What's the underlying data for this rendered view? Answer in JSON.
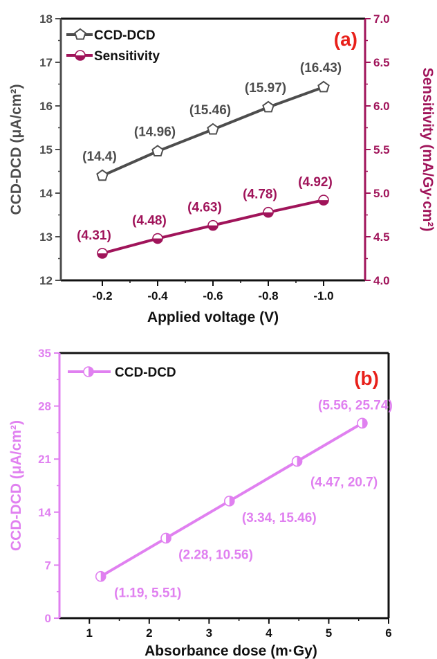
{
  "chart_data": [
    {
      "type": "line",
      "panel_label": "(a)",
      "xlabel": "Applied voltage (V)",
      "categories": [
        "-0.2",
        "-0.4",
        "-0.6",
        "-0.8",
        "-1.0"
      ],
      "x": [
        -0.2,
        -0.4,
        -0.6,
        -0.8,
        -1.0
      ],
      "xlim": [
        -0.05,
        -1.15
      ],
      "y_left": {
        "label": "CCD-DCD (μA/cm²)",
        "lim": [
          12,
          18
        ],
        "ticks": [
          "12",
          "13",
          "14",
          "15",
          "16",
          "17",
          "18"
        ],
        "color": "#4d4d4d"
      },
      "y_right": {
        "label": "Sensitivity (mA/Gy·cm²)",
        "lim": [
          4.0,
          7.0
        ],
        "ticks": [
          "4.0",
          "4.5",
          "5.0",
          "5.5",
          "6.0",
          "6.5",
          "7.0"
        ],
        "color": "#a0145a"
      },
      "series": [
        {
          "name": "CCD-DCD",
          "axis": "left",
          "marker": "pentagon",
          "color": "#4d4d4d",
          "values": [
            14.4,
            14.96,
            15.46,
            15.97,
            16.43
          ],
          "labels": [
            "(14.4)",
            "(14.96)",
            "(15.46)",
            "(15.97)",
            "(16.43)"
          ]
        },
        {
          "name": "Sensitivity",
          "axis": "right",
          "marker": "half-circle",
          "color": "#a0145a",
          "values": [
            4.31,
            4.48,
            4.63,
            4.78,
            4.92
          ],
          "labels": [
            "(4.31)",
            "(4.48)",
            "(4.63)",
            "(4.78)",
            "(4.92)"
          ]
        }
      ],
      "legend": "top-left",
      "grid": false
    },
    {
      "type": "line",
      "panel_label": "(b)",
      "xlabel": "Absorbance dose (m·Gy)",
      "ylabel": "CCD-DCD (μA/cm²)",
      "xlim": [
        0.5,
        6
      ],
      "xticks": [
        "1",
        "2",
        "3",
        "4",
        "5",
        "6"
      ],
      "ylim": [
        0,
        35
      ],
      "yticks": [
        "0",
        "7",
        "14",
        "21",
        "28",
        "35"
      ],
      "axis_color": "#e080f0",
      "series": [
        {
          "name": "CCD-DCD",
          "marker": "half-circle",
          "color": "#e080f0",
          "x": [
            1.19,
            2.28,
            3.34,
            4.47,
            5.56
          ],
          "y": [
            5.51,
            10.56,
            15.46,
            20.7,
            25.74
          ],
          "labels": [
            "(1.19, 5.51)",
            "(2.28, 10.56)",
            "(3.34, 15.46)",
            "(4.47, 20.7)",
            "(5.56, 25.74)"
          ]
        }
      ],
      "legend": "top-left",
      "grid": false
    }
  ]
}
